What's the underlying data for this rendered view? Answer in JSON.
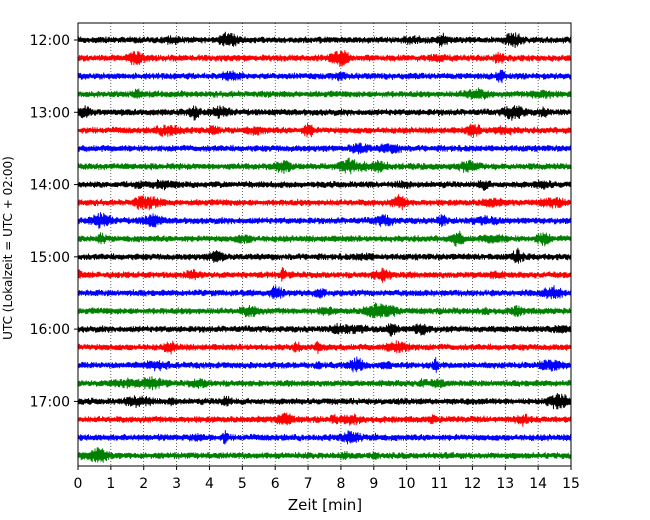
{
  "chart_data": {
    "type": "line",
    "title": "",
    "xlabel": "Zeit  [min]",
    "ylabel": "UTC (Lokalzeit = UTC + 02:00)",
    "xlim": [
      0,
      15
    ],
    "x_ticks": [
      "0",
      "1",
      "2",
      "3",
      "4",
      "5",
      "6",
      "7",
      "8",
      "9",
      "10",
      "11",
      "12",
      "13",
      "14",
      "15"
    ],
    "y_ticks": [
      "12:00",
      "13:00",
      "14:00",
      "15:00",
      "16:00",
      "17:00"
    ],
    "grid": "vertical dotted lines at each minute",
    "trace_interval_minutes": 15,
    "color_cycle": [
      "#000000",
      "#ff0000",
      "#0000ff",
      "#008000"
    ],
    "traces": [
      {
        "start": "12:00",
        "color": "#000000"
      },
      {
        "start": "12:15",
        "color": "#ff0000"
      },
      {
        "start": "12:30",
        "color": "#0000ff"
      },
      {
        "start": "12:45",
        "color": "#008000"
      },
      {
        "start": "13:00",
        "color": "#000000"
      },
      {
        "start": "13:15",
        "color": "#ff0000"
      },
      {
        "start": "13:30",
        "color": "#0000ff"
      },
      {
        "start": "13:45",
        "color": "#008000"
      },
      {
        "start": "14:00",
        "color": "#000000"
      },
      {
        "start": "14:15",
        "color": "#ff0000"
      },
      {
        "start": "14:30",
        "color": "#0000ff"
      },
      {
        "start": "14:45",
        "color": "#008000"
      },
      {
        "start": "15:00",
        "color": "#000000"
      },
      {
        "start": "15:15",
        "color": "#ff0000"
      },
      {
        "start": "15:30",
        "color": "#0000ff"
      },
      {
        "start": "15:45",
        "color": "#008000"
      },
      {
        "start": "16:00",
        "color": "#000000"
      },
      {
        "start": "16:15",
        "color": "#ff0000"
      },
      {
        "start": "16:30",
        "color": "#0000ff"
      },
      {
        "start": "16:45",
        "color": "#008000"
      },
      {
        "start": "17:00",
        "color": "#000000"
      },
      {
        "start": "17:15",
        "color": "#ff0000"
      },
      {
        "start": "17:30",
        "color": "#0000ff"
      },
      {
        "start": "17:45",
        "color": "#008000"
      }
    ]
  }
}
